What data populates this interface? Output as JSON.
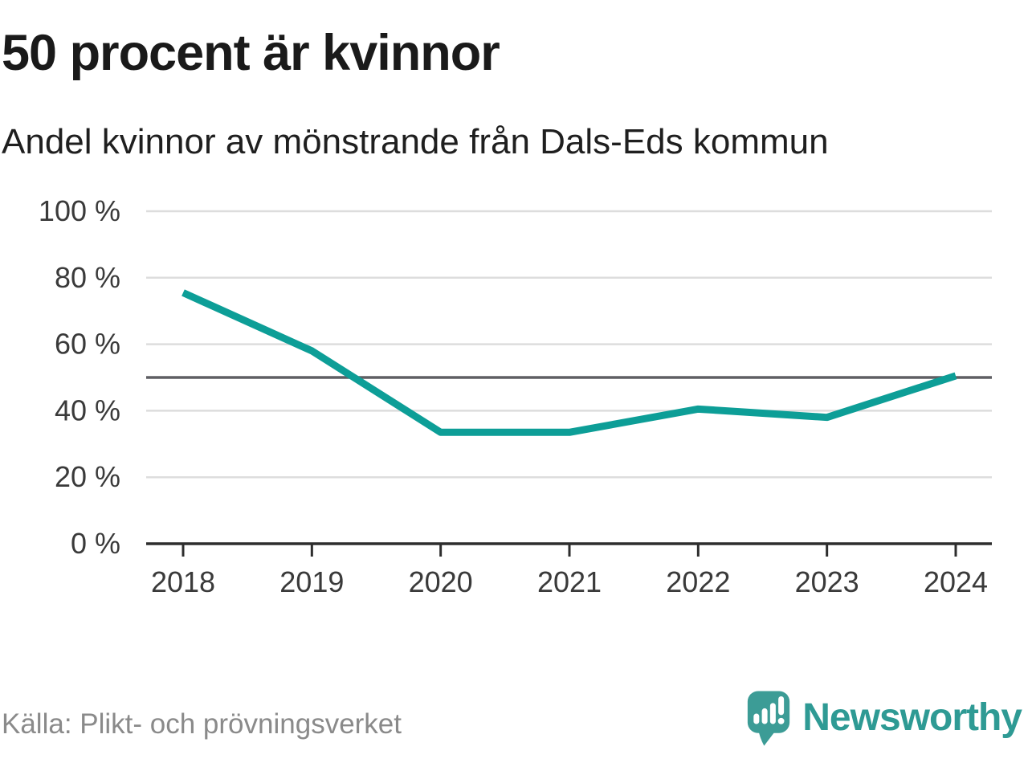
{
  "header": {
    "title": "50 procent är kvinnor",
    "subtitle": "Andel kvinnor av mönstrande från Dals-Eds kommun"
  },
  "footer": {
    "source": "Källa: Plikt- och prövningsverket",
    "brand_name": "Newsworthy"
  },
  "colors": {
    "line": "#0d9e97",
    "reference_line": "#5f5f63",
    "axis": "#2d2d2d",
    "gridline": "#dddddd",
    "tick_label": "#3a3a3a",
    "brand_teal": "#3c9c96"
  },
  "chart_data": {
    "type": "line",
    "title": "50 procent är kvinnor",
    "subtitle": "Andel kvinnor av mönstrande från Dals-Eds kommun",
    "x": [
      "2018",
      "2019",
      "2020",
      "2021",
      "2022",
      "2023",
      "2024"
    ],
    "series": [
      {
        "name": "Andel kvinnor av mönstrande",
        "values": [
          75.5,
          58,
          33.5,
          33.5,
          40.5,
          38,
          50.5
        ]
      }
    ],
    "unit": "%",
    "ylim": [
      0,
      100
    ],
    "yticks": [
      {
        "value": 0,
        "label": "0 %"
      },
      {
        "value": 20,
        "label": "20 %"
      },
      {
        "value": 40,
        "label": "40 %"
      },
      {
        "value": 60,
        "label": "60 %"
      },
      {
        "value": 80,
        "label": "80 %"
      },
      {
        "value": 100,
        "label": "100 %"
      }
    ],
    "reference_line": 50,
    "grid": true,
    "legend": "none"
  }
}
